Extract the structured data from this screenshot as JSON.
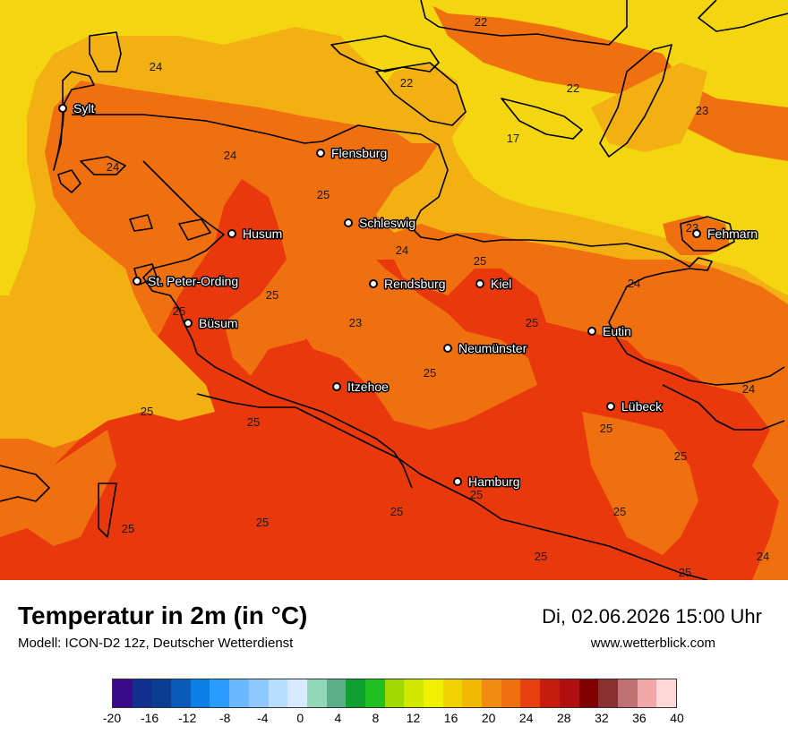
{
  "title": "Temperatur in 2m (in °C)",
  "model": "Modell: ICON-D2 12z, Deutscher Wetterdienst",
  "datetime": "Di, 02.06.2026 15:00 Uhr",
  "website": "www.wetterblick.com",
  "cities": [
    {
      "name": "Sylt"
    },
    {
      "name": "Flensburg"
    },
    {
      "name": "Schleswig"
    },
    {
      "name": "Husum"
    },
    {
      "name": "St. Peter-Ording"
    },
    {
      "name": "Rendsburg"
    },
    {
      "name": "Kiel"
    },
    {
      "name": "Büsum"
    },
    {
      "name": "Eutin"
    },
    {
      "name": "Neumünster"
    },
    {
      "name": "Itzehoe"
    },
    {
      "name": "Lübeck"
    },
    {
      "name": "Hamburg"
    },
    {
      "name": "Fehmarn"
    }
  ],
  "isolines": [
    "22",
    "24",
    "22",
    "22",
    "23",
    "17",
    "24",
    "24",
    "25",
    "24",
    "25",
    "25",
    "25",
    "24",
    "23",
    "25",
    "24",
    "25",
    "25",
    "24",
    "25",
    "25",
    "25",
    "25",
    "25",
    "25",
    "25",
    "25",
    "25",
    "24",
    "25",
    "23"
  ],
  "legend": {
    "ticks": [
      "-20",
      "-16",
      "-12",
      "-8",
      "-4",
      "0",
      "4",
      "8",
      "12",
      "16",
      "20",
      "24",
      "28",
      "32",
      "36",
      "40"
    ],
    "colors": [
      "#3a0a8a",
      "#102f8e",
      "#0a3d8f",
      "#0a5bb8",
      "#0a7fe6",
      "#2a9cff",
      "#6ab8ff",
      "#8ec8ff",
      "#b6dcff",
      "#d6e9ff",
      "#90d8b8",
      "#5aae88",
      "#10a030",
      "#20c020",
      "#a0d800",
      "#d0e800",
      "#f0f000",
      "#f0d000",
      "#f0b800",
      "#f08c10",
      "#f07010",
      "#e84010",
      "#c81c10",
      "#b01010",
      "#800000",
      "#8a3030",
      "#c07070",
      "#f0a8a8",
      "#ffd8d8"
    ]
  }
}
